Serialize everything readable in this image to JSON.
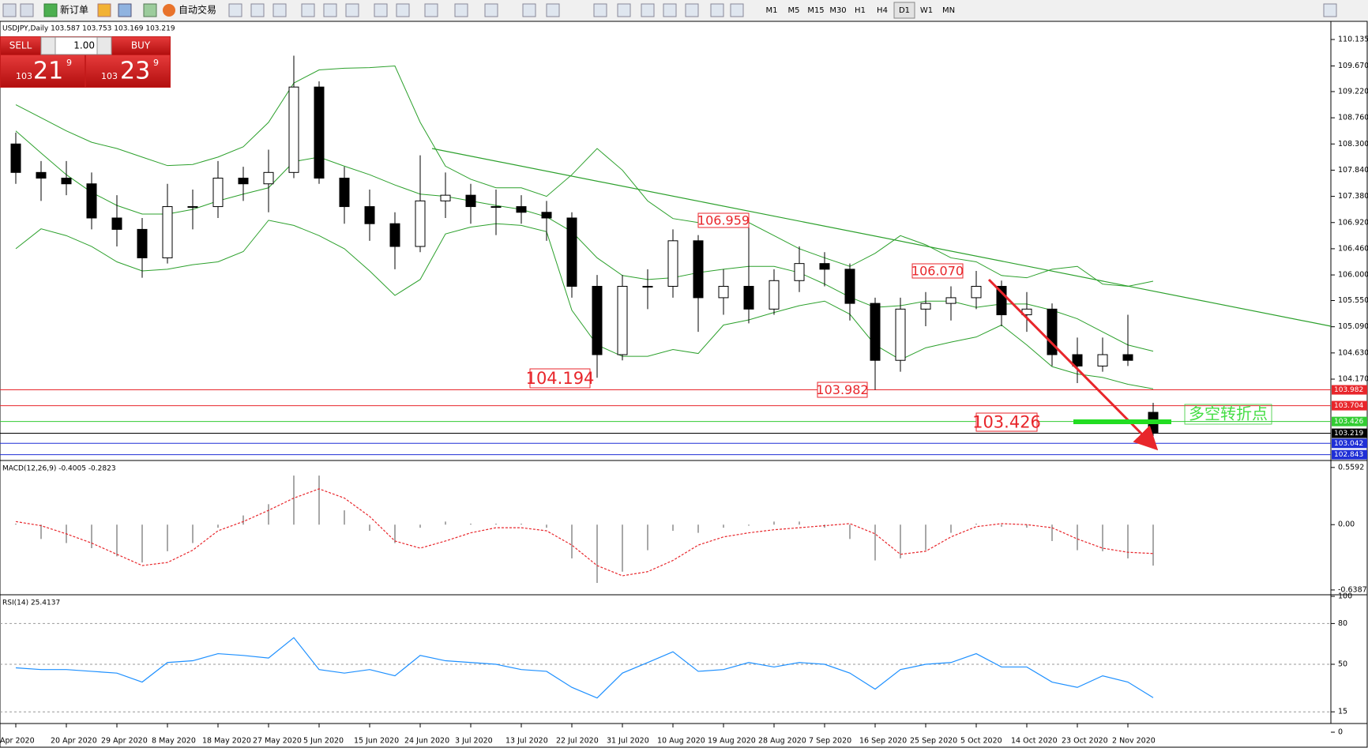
{
  "toolbar": {
    "new_order": "新订单",
    "auto_trading": "自动交易",
    "timeframes": [
      "M1",
      "M5",
      "M15",
      "M30",
      "H1",
      "H4",
      "D1",
      "W1",
      "MN"
    ]
  },
  "trade_panel": {
    "sell": "SELL",
    "buy": "BUY",
    "lots": "1.00",
    "sell_price": {
      "prefix": "103",
      "big": "21",
      "sup": "9"
    },
    "buy_price": {
      "prefix": "103",
      "big": "23",
      "sup": "9"
    }
  },
  "chart_data": [
    {
      "type": "candlestick",
      "title": "USDJPY,Daily  103.587 103.753 103.169 103.219",
      "categories": [
        "Apr 2020",
        null,
        "20 Apr 2020",
        null,
        "29 Apr 2020",
        null,
        "8 May 2020",
        null,
        "18 May 2020",
        null,
        "27 May 2020",
        null,
        "5 Jun 2020",
        null,
        "15 Jun 2020",
        null,
        "24 Jun 2020",
        null,
        "3 Jul 2020",
        null,
        "13 Jul 2020",
        null,
        "22 Jul 2020",
        null,
        "31 Jul 2020",
        null,
        "10 Aug 2020",
        null,
        "19 Aug 2020",
        null,
        "28 Aug 2020",
        null,
        "7 Sep 2020",
        null,
        "16 Sep 2020",
        null,
        "25 Sep 2020",
        null,
        "5 Oct 2020",
        null,
        "14 Oct 2020",
        null,
        "23 Oct 2020",
        null,
        "2 Nov 2020",
        null
      ],
      "ohlc": [
        [
          108.3,
          108.5,
          107.6,
          107.8
        ],
        [
          107.8,
          108.0,
          107.3,
          107.7
        ],
        [
          107.7,
          108.0,
          107.4,
          107.6
        ],
        [
          107.6,
          107.8,
          106.8,
          107.0
        ],
        [
          107.0,
          107.4,
          106.5,
          106.8
        ],
        [
          106.8,
          107.0,
          105.95,
          106.3
        ],
        [
          106.3,
          107.6,
          106.2,
          107.2
        ],
        [
          107.2,
          107.5,
          106.8,
          107.2
        ],
        [
          107.2,
          108.0,
          107.0,
          107.7
        ],
        [
          107.7,
          107.9,
          107.3,
          107.6
        ],
        [
          107.6,
          108.2,
          107.1,
          107.8
        ],
        [
          107.8,
          109.85,
          107.7,
          109.3
        ],
        [
          109.3,
          109.4,
          107.6,
          107.7
        ],
        [
          107.7,
          107.9,
          106.9,
          107.2
        ],
        [
          107.2,
          107.5,
          106.6,
          106.9
        ],
        [
          106.9,
          107.1,
          106.1,
          106.5
        ],
        [
          106.5,
          108.1,
          106.4,
          107.3
        ],
        [
          107.3,
          107.8,
          107.0,
          107.4
        ],
        [
          107.4,
          107.6,
          106.9,
          107.2
        ],
        [
          107.2,
          107.5,
          106.7,
          107.2
        ],
        [
          107.2,
          107.4,
          106.9,
          107.1
        ],
        [
          107.1,
          107.3,
          106.6,
          107.0
        ],
        [
          107.0,
          107.1,
          105.6,
          105.8
        ],
        [
          105.8,
          106.0,
          104.194,
          104.6
        ],
        [
          104.6,
          106.0,
          104.5,
          105.8
        ],
        [
          105.8,
          106.1,
          105.4,
          105.8
        ],
        [
          105.8,
          106.8,
          105.6,
          106.6
        ],
        [
          106.6,
          106.7,
          105.0,
          105.6
        ],
        [
          105.6,
          106.1,
          105.3,
          105.8
        ],
        [
          105.8,
          106.959,
          105.15,
          105.4
        ],
        [
          105.4,
          106.1,
          105.3,
          105.9
        ],
        [
          105.9,
          106.5,
          105.7,
          106.2
        ],
        [
          106.2,
          106.4,
          105.8,
          106.1
        ],
        [
          106.1,
          106.2,
          105.2,
          105.5
        ],
        [
          105.5,
          105.6,
          103.982,
          104.5
        ],
        [
          104.5,
          105.6,
          104.3,
          105.4
        ],
        [
          105.4,
          105.7,
          105.1,
          105.5
        ],
        [
          105.5,
          105.8,
          105.2,
          105.6
        ],
        [
          105.6,
          106.07,
          105.4,
          105.8
        ],
        [
          105.8,
          105.9,
          105.1,
          105.3
        ],
        [
          105.3,
          105.7,
          105.0,
          105.4
        ],
        [
          105.4,
          105.5,
          104.4,
          104.6
        ],
        [
          104.6,
          104.9,
          104.1,
          104.4
        ],
        [
          104.4,
          104.9,
          104.3,
          104.6
        ],
        [
          104.6,
          105.3,
          104.4,
          104.5
        ],
        [
          103.587,
          103.753,
          103.169,
          103.219
        ]
      ],
      "bands": {
        "color": "#2ca02c",
        "upper": [
          108.99,
          108.76,
          108.53,
          108.33,
          108.22,
          108.07,
          107.92,
          107.94,
          108.07,
          108.25,
          108.68,
          109.37,
          109.6,
          109.63,
          109.64,
          109.67,
          108.68,
          107.91,
          107.68,
          107.53,
          107.53,
          107.38,
          107.76,
          108.22,
          107.84,
          107.3,
          106.99,
          106.92,
          106.92,
          106.92,
          106.69,
          106.46,
          106.3,
          106.15,
          106.38,
          106.69,
          106.53,
          106.3,
          106.23,
          105.99,
          105.95,
          106.1,
          106.15,
          105.84,
          105.8,
          105.89
        ],
        "middle": [
          108.53,
          108.14,
          107.76,
          107.45,
          107.22,
          107.07,
          107.07,
          107.15,
          107.3,
          107.42,
          107.53,
          107.99,
          108.07,
          107.91,
          107.76,
          107.58,
          107.42,
          107.38,
          107.3,
          107.22,
          107.15,
          107.02,
          106.76,
          106.3,
          105.99,
          105.92,
          105.95,
          106.04,
          106.1,
          106.15,
          106.15,
          106.04,
          105.84,
          105.61,
          105.43,
          105.46,
          105.54,
          105.54,
          105.43,
          105.49,
          105.49,
          105.38,
          105.23,
          105.0,
          104.77,
          104.66
        ],
        "lower": [
          106.46,
          106.81,
          106.69,
          106.5,
          106.23,
          106.07,
          106.1,
          106.18,
          106.23,
          106.41,
          106.96,
          106.87,
          106.69,
          106.46,
          106.07,
          105.64,
          105.92,
          106.72,
          106.84,
          106.9,
          106.87,
          106.76,
          105.38,
          104.77,
          104.57,
          104.57,
          104.69,
          104.62,
          105.12,
          105.21,
          105.34,
          105.46,
          105.54,
          105.31,
          104.77,
          104.51,
          104.72,
          104.82,
          104.91,
          105.12,
          104.77,
          104.39,
          104.26,
          104.2,
          104.08,
          104.0
        ]
      },
      "levels": [
        {
          "value": 103.982,
          "color": "#e8262b"
        },
        {
          "value": 103.704,
          "color": "#e8262b"
        },
        {
          "value": 103.426,
          "color": "#33cc33"
        },
        {
          "value": 103.219,
          "color": "#000000"
        },
        {
          "value": 103.042,
          "color": "#1f2fd6"
        },
        {
          "value": 102.843,
          "color": "#1f2fd6"
        }
      ],
      "annotations": [
        "106.959",
        "106.070",
        "104.194",
        "103.982",
        "103.426"
      ],
      "pivot_label": "多空转折点",
      "ylim": [
        102.755,
        110.44
      ],
      "yticks": [
        110.135,
        {
          "value": 109.67,
          "label": "109.670"
        },
        {
          "value": 109.22,
          "label": "109.220"
        },
        {
          "value": 108.76,
          "label": "108.760"
        },
        {
          "value": 108.3,
          "label": "108.300"
        },
        {
          "value": 107.84,
          "label": "107.840"
        },
        {
          "value": 107.38,
          "label": "107.380"
        },
        {
          "value": 106.92,
          "label": "106.920"
        },
        {
          "value": 106.46,
          "label": "106.460"
        },
        {
          "value": 106,
          "label": "106.000"
        },
        {
          "value": 105.55,
          "label": "105.550"
        },
        {
          "value": 105.09,
          "label": "105.090"
        },
        {
          "value": 104.63,
          "label": "104.630"
        },
        {
          "value": 104.17,
          "label": "104.170"
        }
      ],
      "grid": false
    },
    {
      "type": "macd",
      "title": "MACD(12,26,9) -0.4005 -0.2823",
      "histogram": [
        0.01,
        -0.14,
        -0.18,
        -0.23,
        -0.31,
        -0.37,
        -0.26,
        -0.18,
        -0.03,
        0.09,
        0.2,
        0.48,
        0.48,
        0.14,
        -0.06,
        -0.18,
        -0.03,
        0.03,
        0.01,
        0.01,
        0.01,
        -0.03,
        -0.33,
        -0.57,
        -0.46,
        -0.25,
        -0.06,
        -0.08,
        -0.03,
        -0.01,
        0.03,
        0.03,
        -0.03,
        -0.14,
        -0.35,
        -0.33,
        -0.25,
        -0.08,
        0.01,
        -0.02,
        -0.03,
        -0.16,
        -0.25,
        -0.26,
        -0.33,
        -0.4005
      ],
      "signal": [
        0.03,
        -0.01,
        -0.09,
        -0.18,
        -0.29,
        -0.4,
        -0.37,
        -0.25,
        -0.06,
        0.03,
        0.14,
        0.26,
        0.35,
        0.26,
        0.08,
        -0.16,
        -0.23,
        -0.16,
        -0.08,
        -0.03,
        -0.03,
        -0.06,
        -0.2,
        -0.4,
        -0.5,
        -0.46,
        -0.35,
        -0.2,
        -0.12,
        -0.08,
        -0.05,
        -0.03,
        -0.01,
        0.01,
        -0.09,
        -0.29,
        -0.26,
        -0.12,
        -0.02,
        0.01,
        0,
        -0.03,
        -0.14,
        -0.23,
        -0.27,
        -0.2823
      ],
      "histogram_color": "#a8a8a8",
      "signal_color": "#e8262b",
      "ylim": [
        -0.678,
        0.612
      ],
      "yticks": [
        0.5592,
        {
          "value": 0,
          "label": "0.00"
        },
        -0.6387
      ],
      "grid": false
    },
    {
      "type": "line",
      "title": "RSI(14) 25.4137",
      "values": [
        47.4,
        46.1,
        46.1,
        44.8,
        43.5,
        36.9,
        51.3,
        52.6,
        57.8,
        56.5,
        54.6,
        69.6,
        46.1,
        43.5,
        46.1,
        41.5,
        56.5,
        52.6,
        51.3,
        50,
        46.1,
        44.8,
        33,
        25.2,
        43.5,
        51.3,
        59.2,
        44.8,
        46.1,
        51.3,
        48,
        51.3,
        50,
        43.5,
        31.7,
        46.1,
        50,
        51.3,
        57.8,
        48,
        48,
        36.9,
        33,
        41.5,
        36.9,
        25.4137
      ],
      "color": "#1e90ff",
      "ylim": [
        0,
        100
      ],
      "yticks": [
        100,
        80,
        50,
        15,
        0
      ],
      "grid": true
    }
  ]
}
